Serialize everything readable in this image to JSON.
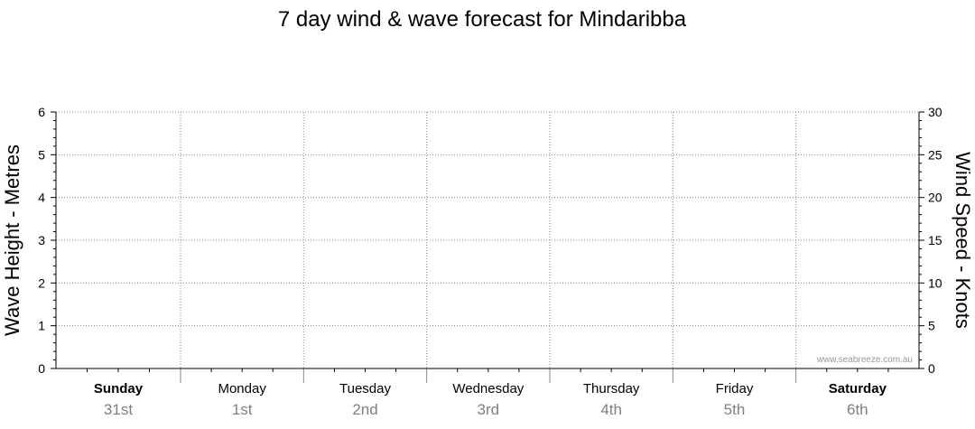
{
  "chart_data": {
    "type": "line",
    "title": "7 day wind & wave forecast for Mindaribba",
    "ylabel_left": "Wave Height - Metres",
    "ylabel_right": "Wind Speed - Knots",
    "ylim_left": [
      0,
      6
    ],
    "ylim_right": [
      0,
      30
    ],
    "yticks_left": [
      "0",
      "1",
      "2",
      "3",
      "4",
      "5",
      "6"
    ],
    "yticks_right": [
      "0",
      "5",
      "10",
      "15",
      "20",
      "25",
      "30"
    ],
    "days": [
      {
        "name": "Sunday",
        "date": "31st",
        "weekend": true
      },
      {
        "name": "Monday",
        "date": "1st",
        "weekend": false
      },
      {
        "name": "Tuesday",
        "date": "2nd",
        "weekend": false
      },
      {
        "name": "Wednesday",
        "date": "3rd",
        "weekend": false
      },
      {
        "name": "Thursday",
        "date": "4th",
        "weekend": false
      },
      {
        "name": "Friday",
        "date": "5th",
        "weekend": false
      },
      {
        "name": "Saturday",
        "date": "6th",
        "weekend": true
      }
    ],
    "series": [],
    "grid": true,
    "watermark": "www.seabreeze.com.au"
  },
  "colors": {
    "axis": "#000000",
    "grid": "#888888",
    "date_text": "#7f7f7f",
    "watermark": "#999999"
  }
}
